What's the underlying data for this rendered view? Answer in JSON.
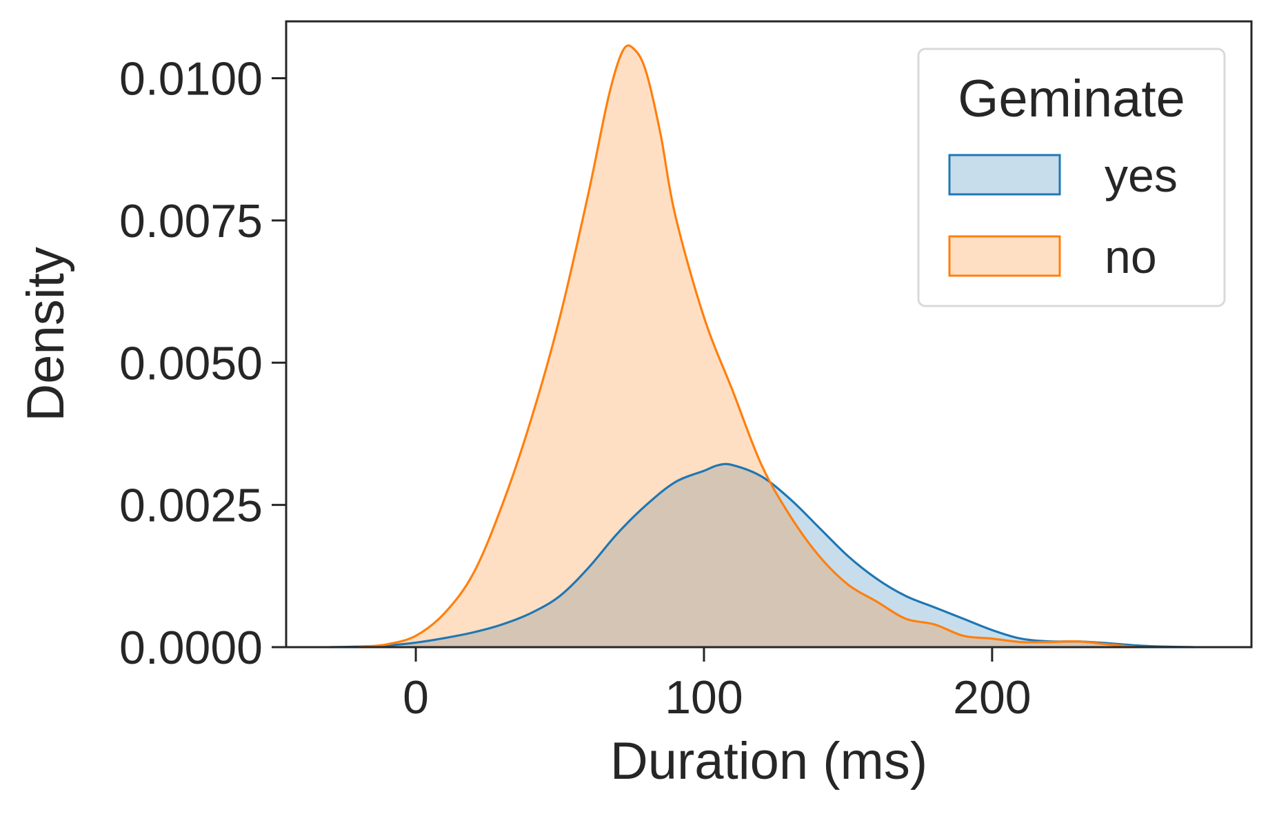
{
  "chart_data": {
    "type": "area",
    "title": "",
    "xlabel": "Duration (ms)",
    "ylabel": "Density",
    "xlim": [
      -45,
      290
    ],
    "ylim": [
      0,
      0.011
    ],
    "x_ticks": [
      0,
      100,
      200
    ],
    "x_tick_labels": [
      "0",
      "100",
      "200"
    ],
    "y_ticks": [
      0,
      0.0025,
      0.005,
      0.0075,
      0.01
    ],
    "y_tick_labels": [
      "0.0000",
      "0.0025",
      "0.0050",
      "0.0075",
      "0.0100"
    ],
    "grid": false,
    "legend": {
      "title": "Geminate",
      "placement": "top-right"
    },
    "series": [
      {
        "name": "yes",
        "color": "#1f77b4",
        "fill_opacity": 0.25,
        "points": [
          [
            -30,
            0.0
          ],
          [
            -20,
            1e-05
          ],
          [
            -10,
            3e-05
          ],
          [
            0,
            8e-05
          ],
          [
            10,
            0.00016
          ],
          [
            20,
            0.00026
          ],
          [
            30,
            0.0004
          ],
          [
            40,
            0.0006
          ],
          [
            50,
            0.0009
          ],
          [
            60,
            0.0014
          ],
          [
            70,
            0.002
          ],
          [
            80,
            0.0025
          ],
          [
            90,
            0.0029
          ],
          [
            100,
            0.0031
          ],
          [
            105,
            0.0032
          ],
          [
            110,
            0.0032
          ],
          [
            120,
            0.003
          ],
          [
            130,
            0.0026
          ],
          [
            140,
            0.0021
          ],
          [
            150,
            0.0016
          ],
          [
            160,
            0.0012
          ],
          [
            170,
            0.0009
          ],
          [
            180,
            0.0007
          ],
          [
            190,
            0.0005
          ],
          [
            200,
            0.0003
          ],
          [
            210,
            0.00015
          ],
          [
            220,
            0.0001
          ],
          [
            230,
            0.0001
          ],
          [
            240,
            7e-05
          ],
          [
            250,
            3e-05
          ],
          [
            260,
            1e-05
          ],
          [
            270,
            0.0
          ]
        ]
      },
      {
        "name": "no",
        "color": "#ff7f0e",
        "fill_opacity": 0.25,
        "points": [
          [
            -20,
            0.0
          ],
          [
            -10,
            5e-05
          ],
          [
            0,
            0.0002
          ],
          [
            10,
            0.0006
          ],
          [
            20,
            0.0013
          ],
          [
            30,
            0.0025
          ],
          [
            40,
            0.004
          ],
          [
            50,
            0.0058
          ],
          [
            60,
            0.008
          ],
          [
            67,
            0.0097
          ],
          [
            72,
            0.0105
          ],
          [
            76,
            0.0105
          ],
          [
            80,
            0.0101
          ],
          [
            85,
            0.009
          ],
          [
            90,
            0.0076
          ],
          [
            100,
            0.0058
          ],
          [
            110,
            0.0045
          ],
          [
            120,
            0.0032
          ],
          [
            130,
            0.0023
          ],
          [
            140,
            0.0016
          ],
          [
            150,
            0.0011
          ],
          [
            160,
            0.0008
          ],
          [
            170,
            0.0005
          ],
          [
            180,
            0.0004
          ],
          [
            190,
            0.0002
          ],
          [
            200,
            0.00015
          ],
          [
            210,
            9e-05
          ],
          [
            220,
            9e-05
          ],
          [
            230,
            0.0001
          ],
          [
            240,
            5e-05
          ],
          [
            250,
            0.0
          ]
        ]
      }
    ]
  }
}
